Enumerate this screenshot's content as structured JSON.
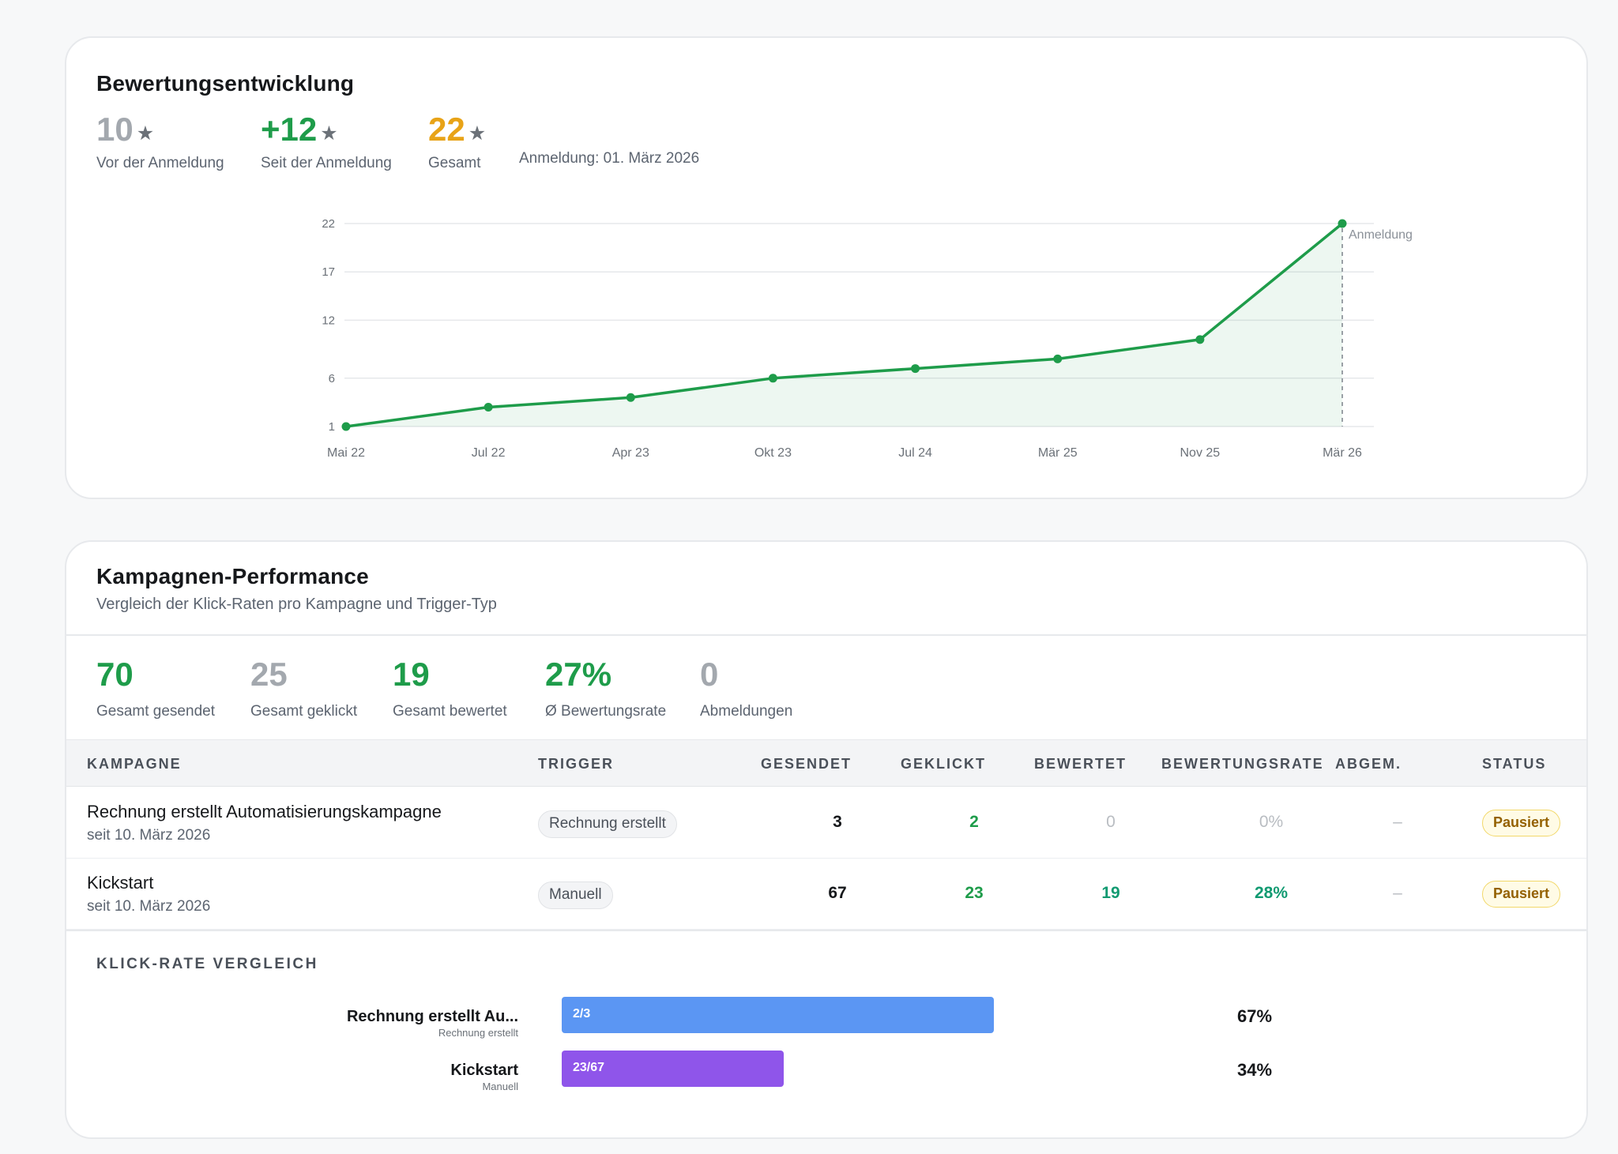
{
  "colors": {
    "green": "#1e9c4a",
    "amber": "#e8a317",
    "muted": "#a3a8ae",
    "teal": "#119a71",
    "blue": "#5b96f3",
    "purple": "#8f55ea"
  },
  "rating_section": {
    "title": "Bewertungsentwicklung",
    "stats": [
      {
        "value": "10",
        "label": "Vor der Anmeldung",
        "icon": "star-icon"
      },
      {
        "value": "+12",
        "label": "Seit der Anmeldung",
        "icon": "star-icon"
      },
      {
        "value": "22",
        "label": "Gesamt",
        "icon": "star-icon"
      }
    ],
    "anmeldung_text": "Anmeldung: 01. März 2026"
  },
  "chart_data": {
    "type": "area",
    "x": [
      "Mai 22",
      "Jul 22",
      "Apr 23",
      "Okt 23",
      "Jul 24",
      "Mär 25",
      "Nov 25",
      "Mär 26"
    ],
    "series": [
      {
        "values": [
          1,
          3,
          4,
          6,
          7,
          8,
          10,
          22
        ]
      }
    ],
    "yticks": [
      1,
      6,
      12,
      17,
      22
    ],
    "ylim": [
      1,
      22
    ],
    "annotation": {
      "x": "Mär 26",
      "label": "Anmeldung"
    },
    "grid": true
  },
  "campaign_section": {
    "title": "Kampagnen-Performance",
    "subtitle": "Vergleich der Klick-Raten pro Kampagne und Trigger-Typ",
    "kpis": [
      {
        "value": "70",
        "label": "Gesamt gesendet"
      },
      {
        "value": "25",
        "label": "Gesamt geklickt"
      },
      {
        "value": "19",
        "label": "Gesamt bewertet"
      },
      {
        "value": "27%",
        "label": "Ø Bewertungsrate"
      },
      {
        "value": "0",
        "label": "Abmeldungen"
      }
    ],
    "table": {
      "headers": [
        "KAMPAGNE",
        "TRIGGER",
        "GESENDET",
        "GEKLICKT",
        "BEWERTET",
        "BEWERTUNGSRATE",
        "ABGEM.",
        "STATUS"
      ],
      "rows": [
        {
          "name": "Rechnung erstellt Automatisierungskampagne",
          "since": "seit 10. März 2026",
          "trigger": "Rechnung erstellt",
          "sent": "3",
          "clicked": "2",
          "rated": "0",
          "rate": "0%",
          "unsub": "–",
          "status": "Pausiert"
        },
        {
          "name": "Kickstart",
          "since": "seit 10. März 2026",
          "trigger": "Manuell",
          "sent": "67",
          "clicked": "23",
          "rated": "19",
          "rate": "28%",
          "unsub": "–",
          "status": "Pausiert"
        }
      ]
    },
    "click_rate": {
      "label": "KLICK-RATE VERGLEICH",
      "bars": [
        {
          "name": "Rechnung erstellt Au...",
          "trigger": "Rechnung erstellt",
          "ratio": "2/3",
          "fraction": 0.667,
          "pct": "67%",
          "color": "#5b96f3"
        },
        {
          "name": "Kickstart",
          "trigger": "Manuell",
          "ratio": "23/67",
          "fraction": 0.343,
          "pct": "34%",
          "color": "#8f55ea"
        }
      ]
    }
  }
}
